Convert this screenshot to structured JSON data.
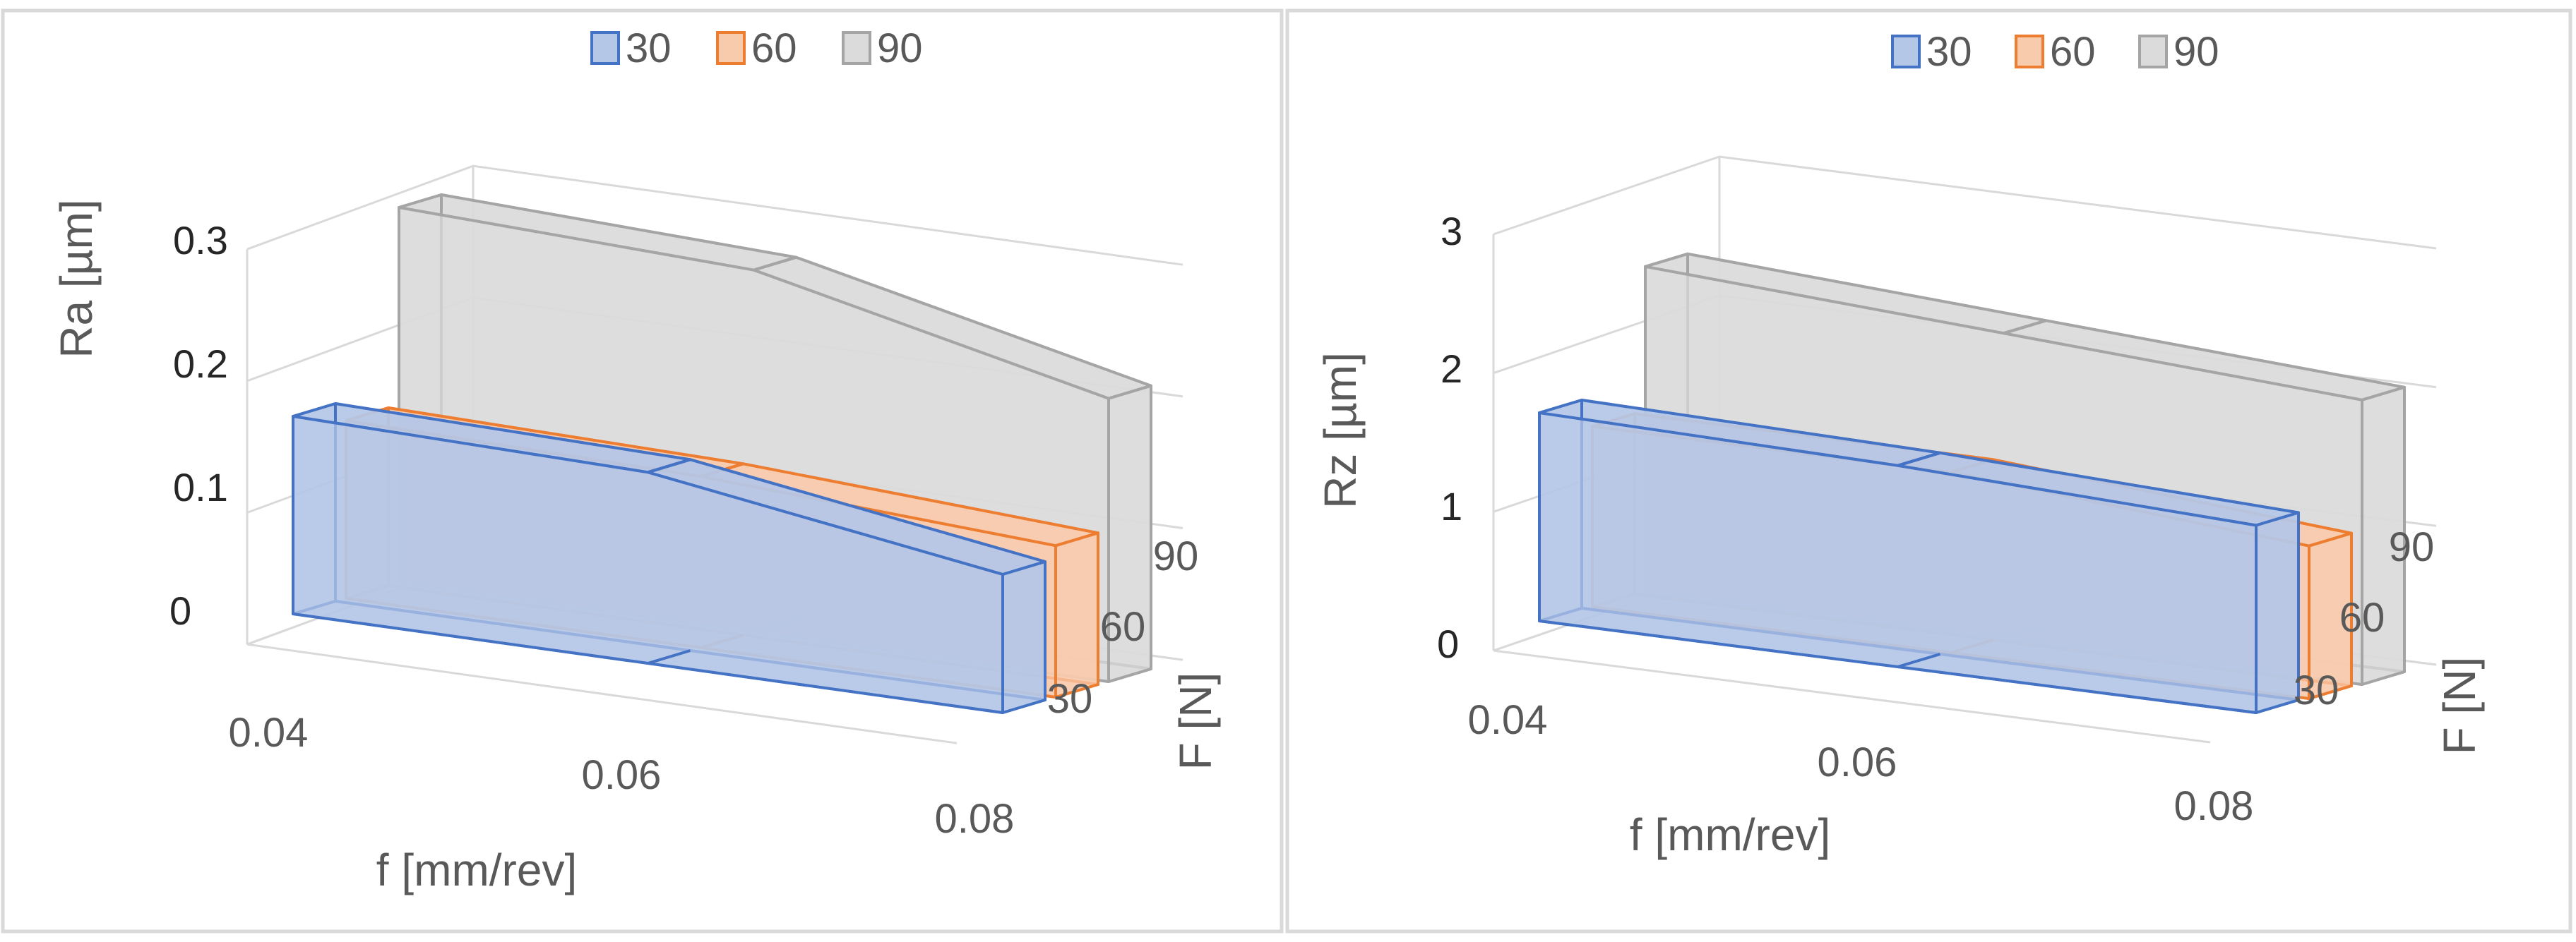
{
  "chart_data": [
    {
      "type": "area",
      "subtype": "3d-area",
      "zlabel": "Ra [µm]",
      "xlabel": "f [mm/rev]",
      "ylabel": "F [N]",
      "x": [
        0.04,
        0.06,
        0.08
      ],
      "x_ticks": [
        "0.04",
        "0.06",
        "0.08"
      ],
      "depth_categories": [
        "30",
        "60",
        "90"
      ],
      "z_ticks": [
        "0",
        "0.1",
        "0.2",
        "0.3"
      ],
      "zlim": [
        0,
        0.3
      ],
      "legend_position": "top",
      "series": [
        {
          "name": "30",
          "values": [
            0.15,
            0.145,
            0.105
          ],
          "color": "#4472c4",
          "fill": "#b4c7e7"
        },
        {
          "name": "60",
          "values": [
            0.135,
            0.13,
            0.115
          ],
          "color": "#ed7d31",
          "fill": "#f8cbad"
        },
        {
          "name": "90",
          "values": [
            0.285,
            0.275,
            0.215
          ],
          "color": "#a5a5a5",
          "fill": "#dbdbdb"
        }
      ]
    },
    {
      "type": "area",
      "subtype": "3d-area",
      "zlabel": "Rz [µm]",
      "xlabel": "f [mm/rev]",
      "ylabel": "F [N]",
      "x": [
        0.04,
        0.06,
        0.08
      ],
      "x_ticks": [
        "0.04",
        "0.06",
        "0.08"
      ],
      "depth_categories": [
        "30",
        "60",
        "90"
      ],
      "z_ticks": [
        "0",
        "1",
        "2",
        "3"
      ],
      "zlim": [
        0,
        3
      ],
      "legend_position": "top",
      "series": [
        {
          "name": "30",
          "values": [
            1.5,
            1.45,
            1.35
          ],
          "color": "#4472c4",
          "fill": "#b4c7e7"
        },
        {
          "name": "60",
          "values": [
            1.3,
            1.3,
            1.1
          ],
          "color": "#ed7d31",
          "fill": "#f8cbad"
        },
        {
          "name": "90",
          "values": [
            2.35,
            2.2,
            2.05
          ],
          "color": "#a5a5a5",
          "fill": "#dbdbdb"
        }
      ]
    }
  ]
}
